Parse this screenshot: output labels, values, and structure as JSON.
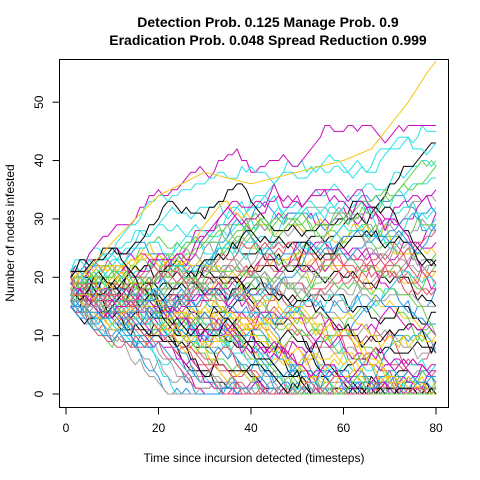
{
  "chart_data": {
    "type": "line",
    "title_line1": "Detection Prob. 0.125 Manage Prob. 0.9",
    "title_line2": "Eradication Prob. 0.048 Spread Reduction 0.999",
    "xlabel": "Time since incursion detected (timesteps)",
    "ylabel": "Number of nodes infested",
    "xlim": [
      1,
      80
    ],
    "ylim": [
      0,
      57
    ],
    "x_ticks": [
      0,
      20,
      40,
      60,
      80
    ],
    "y_ticks": [
      0,
      10,
      20,
      30,
      40,
      50
    ],
    "grid": false,
    "legend": "none",
    "palette": [
      "#000000",
      "#DF536B",
      "#61D04F",
      "#2297E6",
      "#28E2E5",
      "#CD0BBC",
      "#F5C710",
      "#9E9E9E"
    ],
    "num_series": 100,
    "initial_value_range": [
      15,
      21
    ],
    "highlight_series": {
      "color": "#F5C710",
      "description": "single trajectory rising to about 57 at timestep 80",
      "points": [
        [
          1,
          18
        ],
        [
          10,
          26
        ],
        [
          20,
          34
        ],
        [
          30,
          38
        ],
        [
          40,
          36
        ],
        [
          50,
          38
        ],
        [
          60,
          40
        ],
        [
          66,
          42
        ],
        [
          70,
          46
        ],
        [
          74,
          50
        ],
        [
          78,
          55
        ],
        [
          80,
          57
        ]
      ]
    },
    "x_step": 1
  }
}
